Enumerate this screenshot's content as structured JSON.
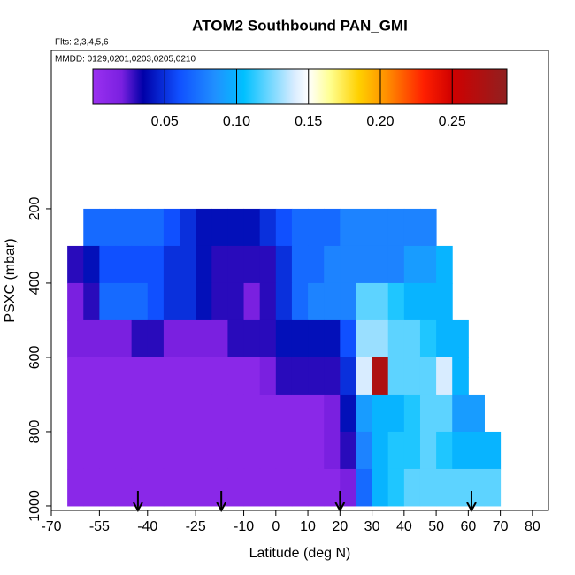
{
  "chart_data": {
    "type": "heatmap",
    "title": "ATOM2 Southbound PAN_GMI",
    "subtitle": "Flts: 2,3,4,5,6",
    "annotation": "MMDD: 0129,0201,0203,0205,0210",
    "xlabel": "Latitude (deg N)",
    "ylabel": "PSXC (mbar)",
    "xlim": [
      -70,
      85
    ],
    "ylim": [
      1012,
      -226
    ],
    "xticks": [
      -70,
      -55,
      -40,
      -25,
      -10,
      0,
      10,
      20,
      30,
      40,
      50,
      60,
      70,
      80
    ],
    "yticks": [
      200,
      400,
      600,
      800,
      1000
    ],
    "xbins": [
      -65,
      -60,
      -55,
      -50,
      -45,
      -40,
      -35,
      -30,
      -25,
      -20,
      -15,
      -10,
      -5,
      0,
      5,
      10,
      15,
      20,
      25,
      30,
      35,
      40,
      45,
      50,
      55,
      60,
      65,
      70
    ],
    "ybins": [
      200,
      300,
      400,
      500,
      600,
      700,
      800,
      900,
      1000
    ],
    "z": [
      [
        null,
        0.07,
        0.07,
        0.07,
        0.07,
        0.07,
        0.06,
        0.05,
        0.04,
        0.04,
        0.04,
        0.04,
        0.05,
        0.06,
        0.07,
        0.07,
        0.07,
        0.08,
        0.08,
        0.08,
        0.08,
        0.08,
        0.08,
        null,
        null,
        null,
        null
      ],
      [
        0.03,
        0.04,
        0.06,
        0.06,
        0.06,
        0.06,
        0.05,
        0.05,
        0.04,
        0.03,
        0.03,
        0.03,
        0.03,
        0.05,
        0.07,
        0.07,
        0.08,
        0.08,
        0.08,
        0.08,
        0.08,
        0.09,
        0.09,
        0.1,
        null,
        null,
        null
      ],
      [
        0.02,
        0.03,
        0.07,
        0.07,
        0.07,
        0.06,
        0.05,
        0.05,
        0.04,
        0.03,
        0.03,
        0.02,
        0.03,
        0.05,
        0.07,
        0.08,
        0.08,
        0.08,
        0.12,
        0.12,
        0.11,
        0.1,
        0.1,
        0.1,
        null,
        null,
        null
      ],
      [
        0.02,
        0.02,
        0.02,
        0.02,
        0.03,
        0.03,
        0.02,
        0.02,
        0.02,
        0.02,
        0.03,
        0.03,
        0.03,
        0.04,
        0.04,
        0.04,
        0.04,
        0.06,
        0.13,
        0.13,
        0.12,
        0.12,
        0.11,
        0.1,
        0.1,
        null,
        null
      ],
      [
        0.01,
        0.01,
        0.01,
        0.01,
        0.01,
        0.01,
        0.01,
        0.01,
        0.01,
        0.01,
        0.01,
        0.01,
        0.02,
        0.03,
        0.03,
        0.03,
        0.03,
        0.05,
        0.14,
        0.27,
        0.12,
        0.12,
        0.12,
        0.14,
        0.1,
        null,
        null
      ],
      [
        0.01,
        0.01,
        0.01,
        0.01,
        0.01,
        0.01,
        0.01,
        0.01,
        0.01,
        0.01,
        0.01,
        0.01,
        0.01,
        0.01,
        0.01,
        0.01,
        0.02,
        0.04,
        0.09,
        0.1,
        0.1,
        0.11,
        0.12,
        0.12,
        0.09,
        0.09,
        null
      ],
      [
        0.01,
        0.01,
        0.01,
        0.01,
        0.01,
        0.01,
        0.01,
        0.01,
        0.01,
        0.01,
        0.01,
        0.01,
        0.01,
        0.01,
        0.01,
        0.01,
        0.02,
        0.03,
        0.08,
        0.1,
        0.11,
        0.11,
        0.12,
        0.11,
        0.1,
        0.1,
        0.1
      ],
      [
        0.01,
        0.01,
        0.01,
        0.01,
        0.01,
        0.01,
        0.01,
        0.01,
        0.01,
        0.01,
        0.01,
        0.01,
        0.01,
        0.01,
        0.01,
        0.01,
        0.01,
        0.02,
        0.07,
        0.1,
        0.11,
        0.12,
        0.12,
        0.12,
        0.12,
        0.12,
        0.12
      ]
    ],
    "colorscale": [
      {
        "value": 0,
        "color": "#9a30f0"
      },
      {
        "value": 0.02,
        "color": "#7a20e0"
      },
      {
        "value": 0.035,
        "color": "#0000a8"
      },
      {
        "value": 0.06,
        "color": "#1050ff"
      },
      {
        "value": 0.085,
        "color": "#2090ff"
      },
      {
        "value": 0.105,
        "color": "#00c0ff"
      },
      {
        "value": 0.14,
        "color": "#d8ecff"
      },
      {
        "value": 0.15,
        "color": "#ffffff"
      },
      {
        "value": 0.165,
        "color": "#ffff90"
      },
      {
        "value": 0.185,
        "color": "#ffd000"
      },
      {
        "value": 0.205,
        "color": "#ff8c00"
      },
      {
        "value": 0.23,
        "color": "#ff2000"
      },
      {
        "value": 0.25,
        "color": "#d00000"
      },
      {
        "value": 0.288,
        "color": "#902020"
      }
    ],
    "clim": [
      0,
      0.288
    ],
    "cticks": [
      0.05,
      {
        "value": 0.1,
        "label": "0.10"
      },
      0.15,
      {
        "value": 0.2,
        "label": "0.20"
      },
      0.25
    ],
    "arrows_x": [
      -43,
      -17,
      20,
      61
    ]
  }
}
